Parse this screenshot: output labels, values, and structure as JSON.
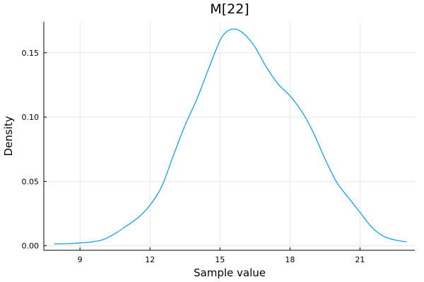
{
  "chart_data": {
    "type": "line",
    "title": "M[22]",
    "xlabel": "Sample value",
    "ylabel": "Density",
    "xlim": [
      7.45,
      23.35
    ],
    "ylim": [
      -0.0035,
      0.174
    ],
    "xticks": [
      9,
      12,
      15,
      18,
      21
    ],
    "xtick_labels": [
      "9",
      "12",
      "15",
      "18",
      "21"
    ],
    "yticks": [
      0.0,
      0.05,
      0.1,
      0.15
    ],
    "ytick_labels": [
      "0.00",
      "0.05",
      "0.10",
      "0.15"
    ],
    "grid": true,
    "legend": "none",
    "series": [
      {
        "color": "#009af9",
        "x": [
          7.9,
          8.5,
          9.0,
          9.5,
          10.0,
          10.5,
          11.0,
          11.5,
          12.0,
          12.5,
          13.0,
          13.5,
          14.0,
          14.5,
          15.0,
          15.3,
          15.6,
          15.9,
          16.2,
          16.5,
          17.0,
          17.5,
          18.0,
          18.5,
          19.0,
          19.5,
          20.0,
          20.5,
          21.0,
          21.5,
          22.0,
          22.5,
          23.0
        ],
        "y": [
          0.0015,
          0.0016,
          0.0022,
          0.003,
          0.0048,
          0.0095,
          0.0155,
          0.022,
          0.0315,
          0.046,
          0.07,
          0.0935,
          0.1135,
          0.137,
          0.1595,
          0.1665,
          0.1685,
          0.1665,
          0.1615,
          0.1545,
          0.1385,
          0.1255,
          0.1165,
          0.1045,
          0.088,
          0.0675,
          0.0495,
          0.0375,
          0.026,
          0.0145,
          0.0075,
          0.0045,
          0.003
        ]
      }
    ]
  }
}
